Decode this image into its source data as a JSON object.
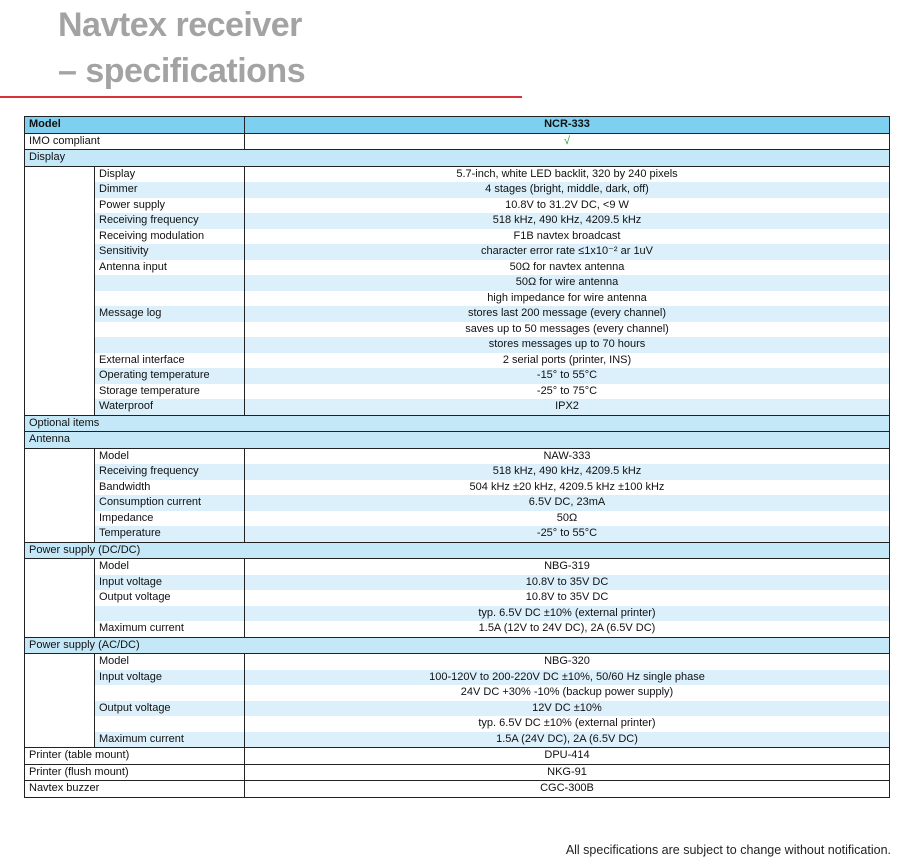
{
  "title": {
    "line1": "Navtex receiver",
    "line2": "– specifications"
  },
  "header": {
    "label": "Model",
    "value": "NCR-333"
  },
  "rows": [
    {
      "type": "top",
      "label": "IMO compliant",
      "value": "√",
      "check": true
    },
    {
      "type": "section",
      "label": "Display"
    },
    {
      "type": "group",
      "rows": [
        {
          "label": "Display",
          "value": "5.7-inch, white LED backlit, 320 by 240 pixels"
        },
        {
          "label": "Dimmer",
          "value": "4 stages (bright, middle, dark, off)"
        },
        {
          "label": "Power supply",
          "value": "10.8V to 31.2V DC, <9 W"
        },
        {
          "label": "Receiving frequency",
          "value": "518 kHz, 490 kHz, 4209.5 kHz"
        },
        {
          "label": "Receiving modulation",
          "value": "F1B navtex broadcast"
        },
        {
          "label": "Sensitivity",
          "value": "character error rate ≤1x10⁻² ar 1uV"
        },
        {
          "label": "Antenna input",
          "value": "50Ω for navtex antenna"
        },
        {
          "label": "",
          "value": "50Ω for wire antenna"
        },
        {
          "label": "",
          "value": "high impedance for wire antenna"
        },
        {
          "label": "Message log",
          "value": "stores last 200 message (every channel)"
        },
        {
          "label": "",
          "value": "saves up to 50 messages (every channel)"
        },
        {
          "label": "",
          "value": "stores messages up to 70 hours"
        },
        {
          "label": "External interface",
          "value": "2 serial ports (printer, INS)"
        },
        {
          "label": "Operating temperature",
          "value": "-15° to 55°C"
        },
        {
          "label": "Storage temperature",
          "value": "-25° to 75°C"
        },
        {
          "label": "Waterproof",
          "value": "IPX2"
        }
      ]
    },
    {
      "type": "section",
      "label": "Optional items"
    },
    {
      "type": "section",
      "label": "Antenna"
    },
    {
      "type": "group",
      "rows": [
        {
          "label": "Model",
          "value": "NAW-333"
        },
        {
          "label": "Receiving frequency",
          "value": "518 kHz, 490 kHz, 4209.5 kHz"
        },
        {
          "label": "Bandwidth",
          "value": "504 kHz ±20 kHz, 4209.5 kHz ±100 kHz"
        },
        {
          "label": "Consumption current",
          "value": "6.5V DC, 23mA"
        },
        {
          "label": "Impedance",
          "value": "50Ω"
        },
        {
          "label": "Temperature",
          "value": "-25° to 55°C"
        }
      ]
    },
    {
      "type": "section",
      "label": "Power supply (DC/DC)"
    },
    {
      "type": "group",
      "rows": [
        {
          "label": "Model",
          "value": "NBG-319"
        },
        {
          "label": "Input voltage",
          "value": "10.8V to 35V DC"
        },
        {
          "label": "Output voltage",
          "value": "10.8V to 35V DC"
        },
        {
          "label": "",
          "value": "typ. 6.5V DC ±10% (external printer)"
        },
        {
          "label": "Maximum current",
          "value": "1.5A (12V to 24V DC), 2A (6.5V DC)"
        }
      ]
    },
    {
      "type": "section",
      "label": "Power supply (AC/DC)"
    },
    {
      "type": "group",
      "rows": [
        {
          "label": "Model",
          "value": "NBG-320"
        },
        {
          "label": "Input voltage",
          "value": "100-120V to 200-220V DC ±10%, 50/60 Hz single phase"
        },
        {
          "label": "",
          "value": "24V DC +30% -10% (backup power supply)"
        },
        {
          "label": "Output voltage",
          "value": "12V DC ±10%"
        },
        {
          "label": "",
          "value": "typ. 6.5V DC ±10% (external printer)"
        },
        {
          "label": "Maximum current",
          "value": "1.5A (24V DC), 2A (6.5V DC)"
        }
      ]
    },
    {
      "type": "top",
      "label": "Printer (table mount)",
      "value": "DPU-414"
    },
    {
      "type": "top",
      "label": "Printer (flush mount)",
      "value": "NKG-91"
    },
    {
      "type": "top",
      "label": "Navtex buzzer",
      "value": "CGC-300B"
    }
  ],
  "footer": "All specifications are subject to change without notification.",
  "colors": {
    "header": "#7dd0f0",
    "section": "#c4e8f8",
    "stripe": "#dcf0fb",
    "title": "#a3a3a3",
    "rule": "#d9323c",
    "check": "#2a9a2a"
  }
}
